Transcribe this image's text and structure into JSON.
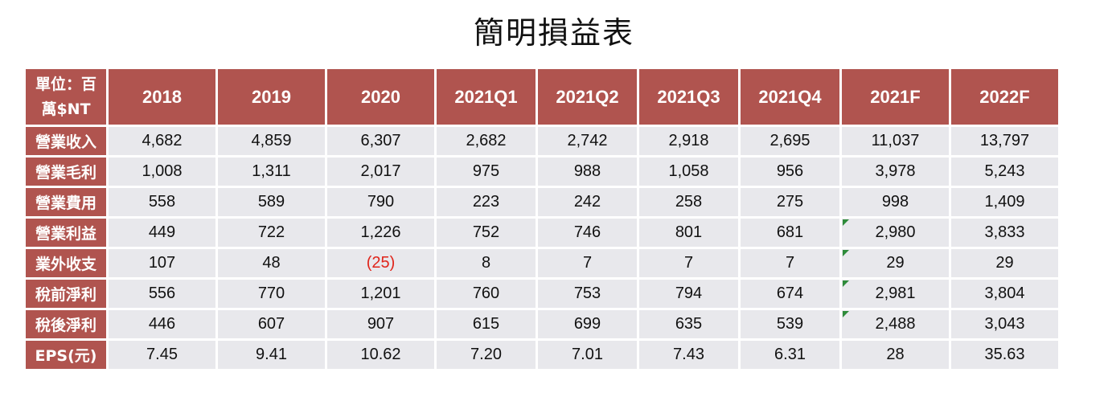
{
  "title": "簡明損益表",
  "table": {
    "corner_line1": "單位：百",
    "corner_line2": "萬$NT",
    "columns": [
      "2018",
      "2019",
      "2020",
      "2021Q1",
      "2021Q2",
      "2021Q3",
      "2021Q4",
      "2021F",
      "2022F"
    ],
    "rows": [
      {
        "label": "營業收入",
        "values": [
          "4,682",
          "4,859",
          "6,307",
          "2,682",
          "2,742",
          "2,918",
          "2,695",
          "11,037",
          "13,797"
        ]
      },
      {
        "label": "營業毛利",
        "values": [
          "1,008",
          "1,311",
          "2,017",
          "975",
          "988",
          "1,058",
          "956",
          "3,978",
          "5,243"
        ]
      },
      {
        "label": "營業費用",
        "values": [
          "558",
          "589",
          "790",
          "223",
          "242",
          "258",
          "275",
          "998",
          "1,409"
        ]
      },
      {
        "label": "營業利益",
        "values": [
          "449",
          "722",
          "1,226",
          "752",
          "746",
          "801",
          "681",
          "2,980",
          "3,833"
        ]
      },
      {
        "label": "業外收支",
        "values": [
          "107",
          "48",
          "(25)",
          "8",
          "7",
          "7",
          "7",
          "29",
          "29"
        ]
      },
      {
        "label": "稅前淨利",
        "values": [
          "556",
          "770",
          "1,201",
          "760",
          "753",
          "794",
          "674",
          "2,981",
          "3,804"
        ]
      },
      {
        "label": "稅後淨利",
        "values": [
          "446",
          "607",
          "907",
          "615",
          "699",
          "635",
          "539",
          "2,488",
          "3,043"
        ]
      },
      {
        "label": "EPS(元)",
        "values": [
          "7.45",
          "9.41",
          "10.62",
          "7.20",
          "7.01",
          "7.43",
          "6.31",
          "28",
          "35.63"
        ]
      }
    ]
  },
  "colors": {
    "header_bg": "#b0544f",
    "cell_bg": "#e8e8ec",
    "negative_text": "#e0241a",
    "flag": "#2e8b3a"
  }
}
